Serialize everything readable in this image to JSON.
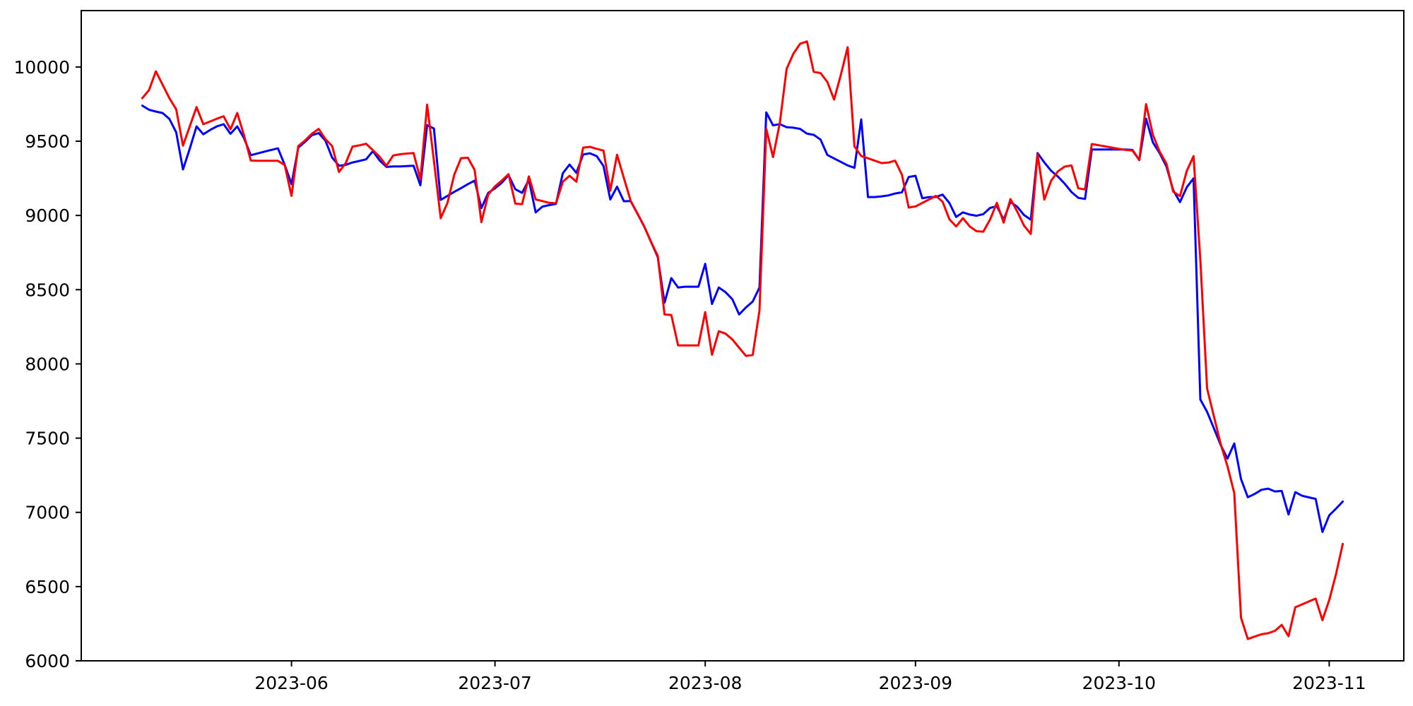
{
  "chart_data": {
    "type": "line",
    "title": "",
    "xlabel": "",
    "ylabel": "",
    "grid": false,
    "legend": "none",
    "background_color": "#ffffff",
    "axis_color": "#000000",
    "xlim": [
      "2023-05-01",
      "2023-11-12"
    ],
    "ylim": [
      6000,
      10380
    ],
    "yticks": [
      6000,
      6500,
      7000,
      7500,
      8000,
      8500,
      9000,
      9500,
      10000
    ],
    "xticks": [
      {
        "date": "2023-06-01",
        "label": "2023-06"
      },
      {
        "date": "2023-07-01",
        "label": "2023-07"
      },
      {
        "date": "2023-08-01",
        "label": "2023-08"
      },
      {
        "date": "2023-09-01",
        "label": "2023-09"
      },
      {
        "date": "2023-10-01",
        "label": "2023-10"
      },
      {
        "date": "2023-11-01",
        "label": "2023-11"
      }
    ],
    "x": [
      "2023-05-10",
      "2023-05-11",
      "2023-05-12",
      "2023-05-13",
      "2023-05-14",
      "2023-05-15",
      "2023-05-16",
      "2023-05-17",
      "2023-05-18",
      "2023-05-19",
      "2023-05-20",
      "2023-05-21",
      "2023-05-22",
      "2023-05-23",
      "2023-05-24",
      "2023-05-25",
      "2023-05-26",
      "2023-05-27",
      "2023-05-28",
      "2023-05-29",
      "2023-05-30",
      "2023-05-31",
      "2023-06-01",
      "2023-06-02",
      "2023-06-03",
      "2023-06-04",
      "2023-06-05",
      "2023-06-06",
      "2023-06-07",
      "2023-06-08",
      "2023-06-09",
      "2023-06-10",
      "2023-06-11",
      "2023-06-12",
      "2023-06-13",
      "2023-06-14",
      "2023-06-15",
      "2023-06-16",
      "2023-06-17",
      "2023-06-18",
      "2023-06-19",
      "2023-06-20",
      "2023-06-21",
      "2023-06-22",
      "2023-06-23",
      "2023-06-24",
      "2023-06-25",
      "2023-06-26",
      "2023-06-27",
      "2023-06-28",
      "2023-06-29",
      "2023-06-30",
      "2023-07-01",
      "2023-07-02",
      "2023-07-03",
      "2023-07-04",
      "2023-07-05",
      "2023-07-06",
      "2023-07-07",
      "2023-07-08",
      "2023-07-09",
      "2023-07-10",
      "2023-07-11",
      "2023-07-12",
      "2023-07-13",
      "2023-07-14",
      "2023-07-15",
      "2023-07-16",
      "2023-07-17",
      "2023-07-18",
      "2023-07-19",
      "2023-07-20",
      "2023-07-21",
      "2023-07-22",
      "2023-07-23",
      "2023-07-24",
      "2023-07-25",
      "2023-07-26",
      "2023-07-27",
      "2023-07-28",
      "2023-07-29",
      "2023-07-30",
      "2023-07-31",
      "2023-08-01",
      "2023-08-02",
      "2023-08-03",
      "2023-08-04",
      "2023-08-05",
      "2023-08-06",
      "2023-08-07",
      "2023-08-08",
      "2023-08-09",
      "2023-08-10",
      "2023-08-11",
      "2023-08-12",
      "2023-08-13",
      "2023-08-14",
      "2023-08-15",
      "2023-08-16",
      "2023-08-17",
      "2023-08-18",
      "2023-08-19",
      "2023-08-20",
      "2023-08-21",
      "2023-08-22",
      "2023-08-23",
      "2023-08-24",
      "2023-08-25",
      "2023-08-26",
      "2023-08-27",
      "2023-08-28",
      "2023-08-29",
      "2023-08-30",
      "2023-08-31",
      "2023-09-01",
      "2023-09-02",
      "2023-09-03",
      "2023-09-04",
      "2023-09-05",
      "2023-09-06",
      "2023-09-07",
      "2023-09-08",
      "2023-09-09",
      "2023-09-10",
      "2023-09-11",
      "2023-09-12",
      "2023-09-13",
      "2023-09-14",
      "2023-09-15",
      "2023-09-16",
      "2023-09-17",
      "2023-09-18",
      "2023-09-19",
      "2023-09-20",
      "2023-09-21",
      "2023-09-22",
      "2023-09-23",
      "2023-09-24",
      "2023-09-25",
      "2023-09-26",
      "2023-09-27",
      "2023-09-28",
      "2023-09-29",
      "2023-09-30",
      "2023-10-01",
      "2023-10-02",
      "2023-10-03",
      "2023-10-04",
      "2023-10-05",
      "2023-10-06",
      "2023-10-07",
      "2023-10-08",
      "2023-10-09",
      "2023-10-10",
      "2023-10-11",
      "2023-10-12",
      "2023-10-13",
      "2023-10-14",
      "2023-10-15",
      "2023-10-16",
      "2023-10-17",
      "2023-10-18",
      "2023-10-19",
      "2023-10-20",
      "2023-10-21",
      "2023-10-22",
      "2023-10-23",
      "2023-10-24",
      "2023-10-25",
      "2023-10-26",
      "2023-10-27",
      "2023-10-28",
      "2023-10-29",
      "2023-10-30",
      "2023-10-31",
      "2023-11-01",
      "2023-11-02",
      "2023-11-03"
    ],
    "series": [
      {
        "name": "blue-series",
        "color": "#0000ff",
        "values": [
          9740,
          9712,
          9700,
          9690,
          9650,
          9560,
          9310,
          9450,
          9600,
          9547,
          9576,
          9600,
          9615,
          9550,
          9600,
          9520,
          9406,
          9418,
          9430,
          9441,
          9452,
          9341,
          9211,
          9457,
          9496,
          9540,
          9555,
          9504,
          9389,
          9335,
          9341,
          9357,
          9367,
          9378,
          9433,
          9370,
          9327,
          9330,
          9330,
          9333,
          9335,
          9203,
          9608,
          9586,
          9105,
          9132,
          9159,
          9184,
          9211,
          9235,
          9050,
          9152,
          9183,
          9220,
          9272,
          9177,
          9152,
          9240,
          9021,
          9060,
          9070,
          9078,
          9284,
          9343,
          9287,
          9411,
          9419,
          9400,
          9333,
          9108,
          9194,
          9096,
          9097,
          9013,
          8926,
          8823,
          8720,
          8412,
          8578,
          8515,
          8520,
          8520,
          8520,
          8674,
          8404,
          8515,
          8483,
          8436,
          8333,
          8380,
          8420,
          8515,
          9694,
          9607,
          9615,
          9595,
          9591,
          9583,
          9551,
          9543,
          9511,
          9408,
          9384,
          9361,
          9337,
          9321,
          9647,
          9124,
          9124,
          9129,
          9135,
          9148,
          9156,
          9259,
          9267,
          9116,
          9124,
          9124,
          9140,
          9084,
          8990,
          9021,
          9006,
          8998,
          9009,
          9051,
          9062,
          8972,
          9091,
          9059,
          9003,
          8972,
          9420,
          9357,
          9301,
          9262,
          9214,
          9158,
          9119,
          9111,
          9444,
          9444,
          9444,
          9444,
          9444,
          9444,
          9441,
          9373,
          9652,
          9492,
          9420,
          9330,
          9170,
          9090,
          9190,
          9250,
          7760,
          7677,
          7566,
          7454,
          7362,
          7464,
          7224,
          7102,
          7124,
          7152,
          7160,
          7141,
          7144,
          6986,
          7136,
          7112,
          7101,
          7091,
          6868,
          6979,
          7025,
          7073
        ]
      },
      {
        "name": "red-series",
        "color": "#ff0000",
        "values": [
          9790,
          9845,
          9971,
          9880,
          9790,
          9715,
          9470,
          9600,
          9730,
          9615,
          9633,
          9652,
          9668,
          9580,
          9690,
          9540,
          9370,
          9368,
          9368,
          9368,
          9368,
          9340,
          9132,
          9468,
          9505,
          9550,
          9583,
          9515,
          9467,
          9293,
          9353,
          9464,
          9472,
          9483,
          9440,
          9395,
          9335,
          9404,
          9412,
          9417,
          9421,
          9243,
          9746,
          9368,
          8982,
          9085,
          9275,
          9386,
          9389,
          9307,
          8955,
          9140,
          9196,
          9235,
          9278,
          9080,
          9076,
          9263,
          9108,
          9097,
          9085,
          9082,
          9227,
          9267,
          9227,
          9457,
          9462,
          9449,
          9437,
          9167,
          9409,
          9253,
          9100,
          9013,
          8926,
          8823,
          8728,
          8333,
          8330,
          8125,
          8125,
          8125,
          8125,
          8349,
          8062,
          8220,
          8204,
          8165,
          8109,
          8054,
          8060,
          8360,
          9583,
          9393,
          9623,
          9987,
          10090,
          10157,
          10172,
          9967,
          9959,
          9900,
          9781,
          9948,
          10133,
          9465,
          9401,
          9385,
          9369,
          9353,
          9356,
          9369,
          9275,
          9053,
          9061,
          9084,
          9108,
          9132,
          9092,
          8974,
          8926,
          8982,
          8926,
          8894,
          8891,
          8973,
          9085,
          8952,
          9110,
          9027,
          8932,
          8876,
          9412,
          9107,
          9234,
          9297,
          9329,
          9337,
          9183,
          9175,
          9481,
          9473,
          9465,
          9457,
          9449,
          9441,
          9437,
          9373,
          9750,
          9544,
          9430,
          9350,
          9160,
          9130,
          9300,
          9400,
          8700,
          7834,
          7647,
          7460,
          7311,
          7130,
          6290,
          6147,
          6163,
          6179,
          6186,
          6202,
          6242,
          6166,
          6361,
          6380,
          6400,
          6419,
          6274,
          6409,
          6583,
          6788
        ]
      }
    ]
  }
}
